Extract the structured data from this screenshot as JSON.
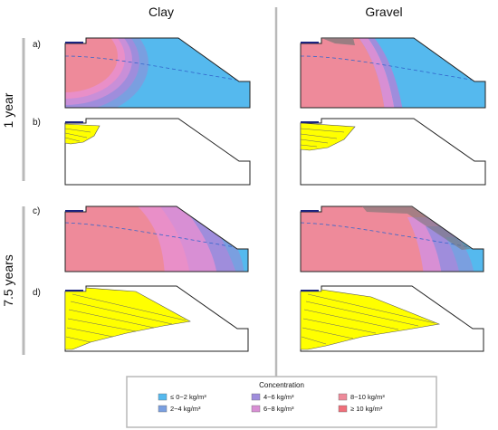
{
  "columns": {
    "left": "Clay",
    "right": "Gravel"
  },
  "rows": {
    "top": "1 year",
    "bottom": "7.5 years"
  },
  "panel_labels": [
    "a)",
    "b)",
    "c)",
    "d)"
  ],
  "legend": {
    "title": "Concentration",
    "items": [
      {
        "label": "≤ 0−2 kg/m³",
        "color": "#55b9ee"
      },
      {
        "label": "2−4 kg/m³",
        "color": "#7a9fe0"
      },
      {
        "label": "4−6 kg/m³",
        "color": "#9f8ddc"
      },
      {
        "label": "6−8 kg/m³",
        "color": "#d88fd4"
      },
      {
        "label": "8−10 kg/m³",
        "color": "#ee8a9a"
      },
      {
        "label": "≥ 10 kg/m³",
        "color": "#ef6f7a"
      }
    ]
  },
  "colors": {
    "streamline_fill": "#ffff00",
    "water_line": "#1a237e",
    "divider": "#b9b9b9"
  }
}
